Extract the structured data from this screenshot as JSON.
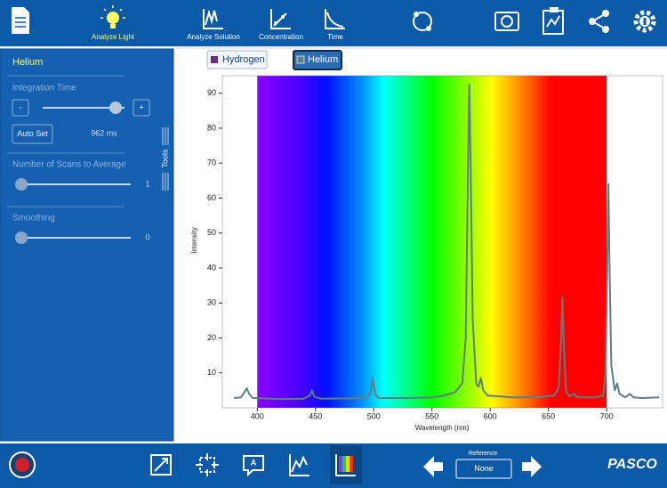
{
  "toolbar": {
    "tabs": [
      "Analyze Light",
      "Analyze Solution",
      "Concentration",
      "Time"
    ]
  },
  "sidebar": {
    "title": "Helium",
    "integration_time": {
      "label": "Integration Time",
      "minus": "-",
      "plus": "+",
      "auto_set": "Auto Set",
      "value": "962 ms"
    },
    "tools": "Tools",
    "scans": {
      "label": "Number of Scans to Average",
      "value": "1"
    },
    "smoothing": {
      "label": "Smoothing",
      "value": "0"
    }
  },
  "run_buttons": [
    "Hydrogen",
    "Helium"
  ],
  "chart_data": {
    "type": "line",
    "x_label": "Wavelength (nm)",
    "y_label": "Intensity",
    "x": [
      380,
      386,
      389,
      391,
      393,
      396,
      420,
      440,
      445,
      447,
      449,
      455,
      480,
      494,
      497,
      499,
      501,
      504,
      530,
      550,
      560,
      570,
      576,
      579,
      581,
      582,
      583,
      585,
      588,
      590,
      592,
      594,
      598,
      620,
      640,
      655,
      659,
      661,
      662,
      663,
      665,
      668,
      672,
      675,
      690,
      697,
      699,
      700.5,
      701.5,
      702.5,
      704,
      707,
      709,
      711,
      716,
      720,
      723,
      730,
      745
    ],
    "series": [
      {
        "name": "Helium",
        "color": "#5e7e7f",
        "values": [
          2.8,
          3,
          4.5,
          5.6,
          4,
          2.8,
          2.5,
          2.6,
          3.5,
          5,
          3.2,
          2.6,
          2.7,
          3,
          4,
          8.5,
          4,
          2.8,
          2.8,
          3,
          3.5,
          4.5,
          7,
          20,
          70,
          92.5,
          75,
          25,
          7,
          6,
          8.5,
          5,
          3.5,
          3,
          3,
          3.5,
          6,
          20,
          31.5,
          20,
          5,
          3.2,
          4,
          3,
          3,
          3.5,
          10,
          40,
          64,
          40,
          12,
          5,
          7,
          4,
          3,
          4,
          3,
          2.8,
          3
        ]
      }
    ],
    "xlim": [
      370,
      748
    ],
    "ylim": [
      0,
      95
    ],
    "xticks": [
      400,
      450,
      500,
      550,
      600,
      650,
      700
    ],
    "yticks": [
      10,
      20,
      30,
      40,
      50,
      60,
      70,
      80,
      90
    ],
    "grid": false
  },
  "bottom": {
    "reference_label": "Reference",
    "reference_value": "None",
    "brand": "PASCO"
  }
}
